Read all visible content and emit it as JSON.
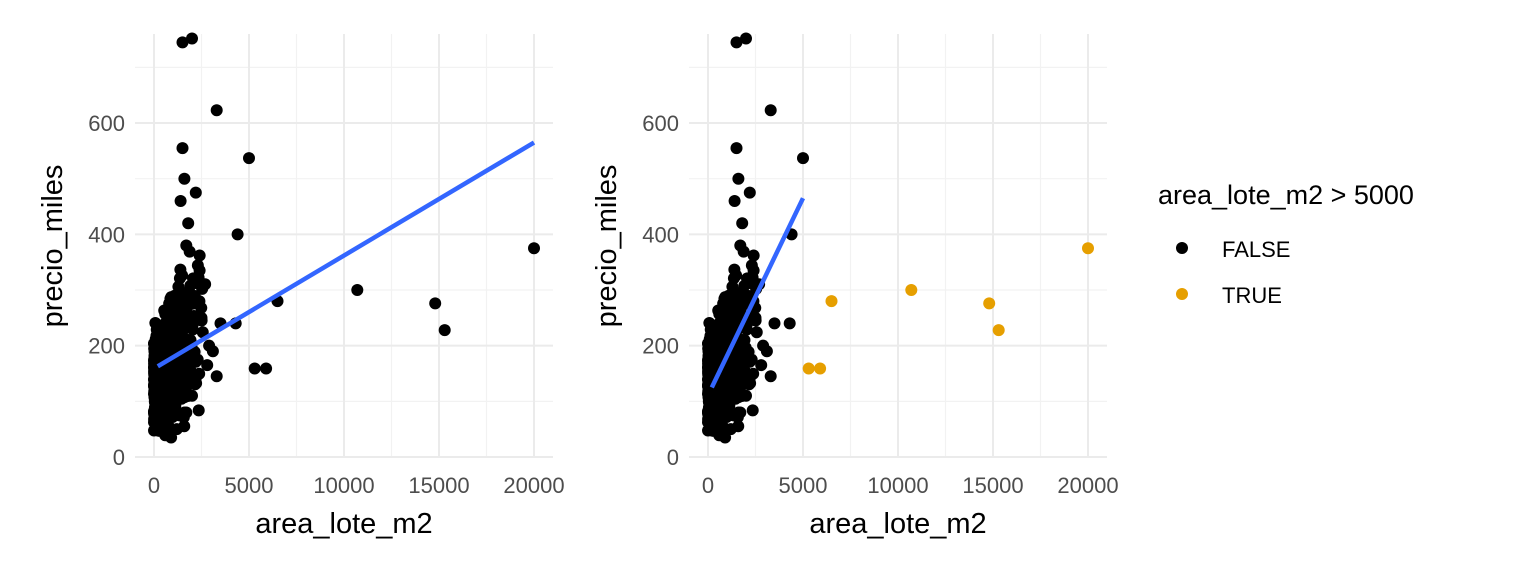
{
  "chart_data": [
    {
      "type": "scatter",
      "title": "",
      "xlabel": "area_lote_m2",
      "ylabel": "precio_miles",
      "xlim": [
        -1000,
        21000
      ],
      "ylim": [
        0,
        760
      ],
      "x_ticks": [
        "0",
        "5000",
        "10000",
        "15000",
        "20000"
      ],
      "y_ticks": [
        "0",
        "200",
        "400",
        "600"
      ],
      "grid": true,
      "series": [
        {
          "color": "#000000",
          "points": [
            [
              1500,
              745
            ],
            [
              2000,
              752
            ],
            [
              3300,
              623
            ],
            [
              1500,
              555
            ],
            [
              5000,
              537
            ],
            [
              1600,
              500
            ],
            [
              2200,
              475
            ],
            [
              4400,
              400
            ],
            [
              2400,
              335
            ],
            [
              6500,
              280
            ],
            [
              10700,
              300
            ],
            [
              14800,
              276
            ],
            [
              15300,
              228
            ],
            [
              3500,
              240
            ],
            [
              4300,
              240
            ],
            [
              5300,
              159
            ],
            [
              5900,
              159
            ],
            [
              3100,
              190
            ],
            [
              3300,
              145
            ],
            [
              2800,
              165
            ],
            [
              2000,
              110
            ],
            [
              1600,
              80
            ],
            [
              900,
              35
            ],
            [
              700,
              40
            ],
            [
              1200,
              50
            ],
            [
              1800,
              420
            ],
            [
              1400,
              460
            ],
            [
              1700,
              380
            ],
            [
              2500,
              250
            ],
            [
              2900,
              200
            ],
            [
              20000,
              375
            ]
          ]
        }
      ],
      "trend_line": {
        "color": "#3366FF",
        "points": [
          [
            200,
            163
          ],
          [
            20000,
            565
          ]
        ]
      },
      "dense_cluster": {
        "x_range": [
          0,
          2800
        ],
        "y_range": [
          35,
          480
        ]
      }
    },
    {
      "type": "scatter",
      "title": "",
      "xlabel": "area_lote_m2",
      "ylabel": "precio_miles",
      "xlim": [
        -1000,
        21000
      ],
      "ylim": [
        0,
        760
      ],
      "x_ticks": [
        "0",
        "5000",
        "10000",
        "15000",
        "20000"
      ],
      "y_ticks": [
        "0",
        "200",
        "400",
        "600"
      ],
      "grid": true,
      "legend": {
        "title": "area_lote_m2 > 5000",
        "placement": "right",
        "entries": [
          {
            "label": "FALSE",
            "color": "#000000"
          },
          {
            "label": "TRUE",
            "color": "#E69F00"
          }
        ]
      },
      "series": [
        {
          "name": "FALSE",
          "color": "#000000",
          "points": [
            [
              1500,
              745
            ],
            [
              2000,
              752
            ],
            [
              3300,
              623
            ],
            [
              1500,
              555
            ],
            [
              5000,
              537
            ],
            [
              1600,
              500
            ],
            [
              2200,
              475
            ],
            [
              4400,
              400
            ],
            [
              2400,
              335
            ],
            [
              3500,
              240
            ],
            [
              4300,
              240
            ],
            [
              3100,
              190
            ],
            [
              3300,
              145
            ],
            [
              2800,
              165
            ],
            [
              2000,
              110
            ],
            [
              1600,
              80
            ],
            [
              900,
              35
            ],
            [
              700,
              40
            ],
            [
              1200,
              50
            ],
            [
              1800,
              420
            ],
            [
              1400,
              460
            ],
            [
              1700,
              380
            ],
            [
              2500,
              250
            ],
            [
              2900,
              200
            ]
          ]
        },
        {
          "name": "TRUE",
          "color": "#E69F00",
          "points": [
            [
              5300,
              159
            ],
            [
              5900,
              159
            ],
            [
              6500,
              280
            ],
            [
              10700,
              300
            ],
            [
              14800,
              276
            ],
            [
              15300,
              228
            ],
            [
              20000,
              375
            ]
          ]
        }
      ],
      "trend_line": {
        "color": "#3366FF",
        "points": [
          [
            200,
            125
          ],
          [
            5000,
            465
          ]
        ]
      },
      "dense_cluster": {
        "x_range": [
          0,
          2800
        ],
        "y_range": [
          35,
          480
        ]
      }
    }
  ]
}
